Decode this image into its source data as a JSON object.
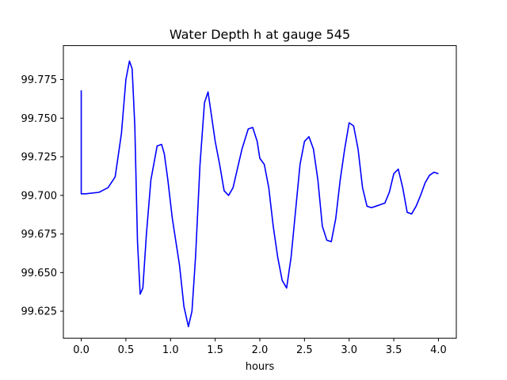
{
  "chart_data": {
    "type": "line",
    "title": "Water Depth h at gauge 545",
    "xlabel": "hours",
    "ylabel": "",
    "xlim": [
      -0.2,
      4.2
    ],
    "ylim": [
      99.6075,
      99.797
    ],
    "xticks": [
      0.0,
      0.5,
      1.0,
      1.5,
      2.0,
      2.5,
      3.0,
      3.5,
      4.0
    ],
    "xtick_labels": [
      "0.0",
      "0.5",
      "1.0",
      "1.5",
      "2.0",
      "2.5",
      "3.0",
      "3.5",
      "4.0"
    ],
    "yticks": [
      99.625,
      99.65,
      99.675,
      99.7,
      99.725,
      99.75,
      99.775
    ],
    "ytick_labels": [
      "99.625",
      "99.650",
      "99.675",
      "99.700",
      "99.725",
      "99.750",
      "99.775"
    ],
    "grid": false,
    "legend": "none",
    "series": [
      {
        "color": "#0000ff",
        "x": [
          0.0,
          0.0,
          0.05,
          0.2,
          0.3,
          0.38,
          0.45,
          0.5,
          0.54,
          0.57,
          0.6,
          0.63,
          0.66,
          0.69,
          0.73,
          0.78,
          0.85,
          0.9,
          0.93,
          0.97,
          1.02,
          1.1,
          1.15,
          1.2,
          1.24,
          1.28,
          1.33,
          1.38,
          1.42,
          1.45,
          1.5,
          1.55,
          1.6,
          1.65,
          1.7,
          1.8,
          1.87,
          1.92,
          1.97,
          2.0,
          2.05,
          2.1,
          2.15,
          2.2,
          2.25,
          2.3,
          2.35,
          2.4,
          2.45,
          2.5,
          2.55,
          2.6,
          2.65,
          2.7,
          2.75,
          2.8,
          2.85,
          2.9,
          2.95,
          3.0,
          3.05,
          3.1,
          3.15,
          3.2,
          3.25,
          3.3,
          3.35,
          3.4,
          3.45,
          3.5,
          3.55,
          3.6,
          3.65,
          3.7,
          3.75,
          3.8,
          3.85,
          3.9,
          3.95,
          4.0
        ],
        "y": [
          99.768,
          99.701,
          99.701,
          99.702,
          99.705,
          99.712,
          99.74,
          99.775,
          99.787,
          99.782,
          99.745,
          99.67,
          99.636,
          99.64,
          99.675,
          99.71,
          99.732,
          99.733,
          99.727,
          99.71,
          99.685,
          99.655,
          99.628,
          99.615,
          99.625,
          99.66,
          99.72,
          99.76,
          99.767,
          99.755,
          99.735,
          99.72,
          99.703,
          99.7,
          99.705,
          99.73,
          99.743,
          99.744,
          99.735,
          99.724,
          99.72,
          99.705,
          99.68,
          99.66,
          99.645,
          99.64,
          99.66,
          99.69,
          99.72,
          99.735,
          99.738,
          99.73,
          99.71,
          99.68,
          99.671,
          99.67,
          99.685,
          99.71,
          99.73,
          99.747,
          99.745,
          99.73,
          99.705,
          99.693,
          99.692,
          99.693,
          99.694,
          99.695,
          99.702,
          99.714,
          99.717,
          99.705,
          99.689,
          99.688,
          99.693,
          99.7,
          99.708,
          99.713,
          99.715,
          99.714
        ]
      }
    ]
  }
}
